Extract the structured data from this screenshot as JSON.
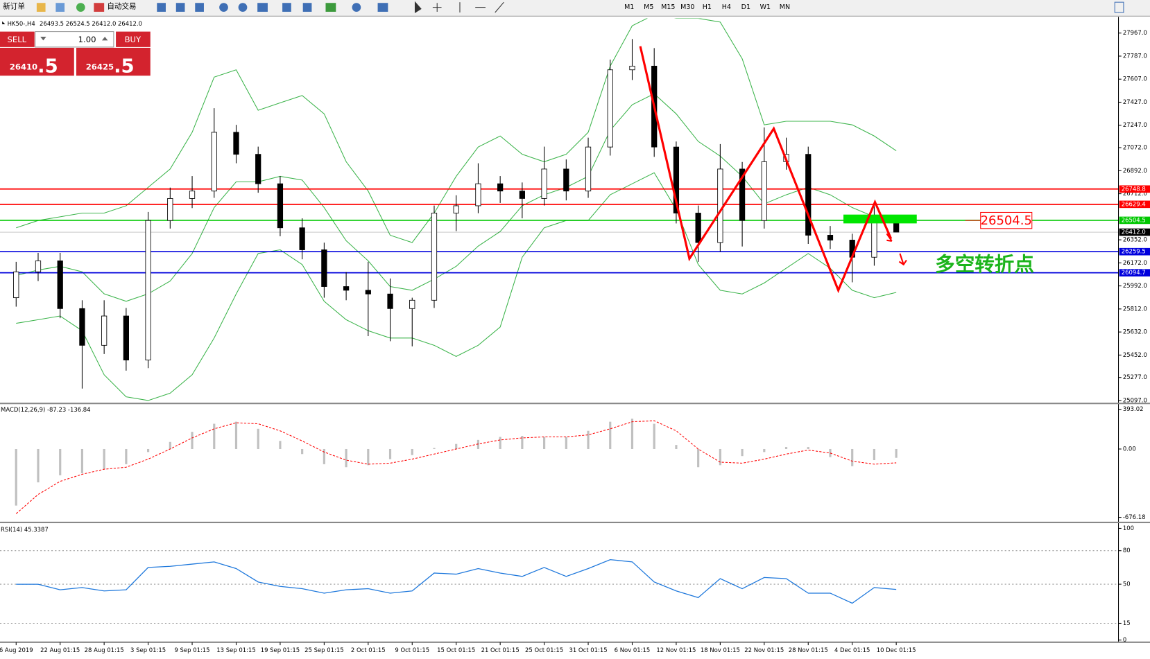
{
  "toolbar": {
    "buttons": [
      "新订单",
      "自动交易"
    ],
    "timeframes": [
      "M1",
      "M5",
      "M15",
      "M30",
      "H1",
      "H4",
      "D1",
      "W1",
      "MN"
    ]
  },
  "trade_panel": {
    "sell": "SELL",
    "buy": "BUY",
    "lots": "1.00",
    "sell_price": "26410",
    "sell_frac": ".5",
    "buy_price": "26425",
    "buy_frac": ".5"
  },
  "chart_data": [
    {
      "type": "candlestick",
      "title": "HK50-,H4",
      "subtitle": "26493.5 26524.5 26412.0 26412.0",
      "categories": [
        "6 Aug 2019",
        null,
        "22 Aug 01:15",
        null,
        "28 Aug 01:15",
        null,
        "3 Sep 01:15",
        null,
        "9 Sep 01:15",
        null,
        "13 Sep 01:15",
        null,
        "19 Sep 01:15",
        null,
        "25 Sep 01:15",
        null,
        "2 Oct 01:15",
        null,
        "9 Oct 01:15",
        null,
        "15 Oct 01:15",
        null,
        "21 Oct 01:15",
        null,
        "25 Oct 01:15",
        null,
        "31 Oct 01:15",
        null,
        "6 Nov 01:15",
        null,
        "12 Nov 01:15",
        null,
        "18 Nov 01:15",
        null,
        "22 Nov 01:15",
        null,
        "28 Nov 01:15",
        null,
        "4 Dec 01:15",
        null,
        "10 Dec 01:15"
      ],
      "open": [
        25900,
        26102,
        26188,
        25815,
        25528,
        25757,
        25413,
        26503,
        26675,
        26733,
        27192,
        27020,
        26790,
        26446,
        26274,
        25987,
        25958,
        25929,
        25815,
        25880,
        26561,
        26618,
        26790,
        26733,
        26675,
        26905,
        26733,
        27077,
        27680,
        27709,
        27077,
        26561,
        26331,
        26905,
        26503,
        26962,
        27020,
        26388,
        26350,
        26216,
        26493.5
      ],
      "high": [
        26180,
        26250,
        26250,
        25880,
        25880,
        25820,
        26570,
        26760,
        26850,
        27380,
        27250,
        27080,
        26850,
        26520,
        26330,
        26100,
        26180,
        26050,
        25900,
        26620,
        26700,
        26950,
        26850,
        26800,
        27080,
        26980,
        27150,
        27760,
        27920,
        27850,
        27120,
        26620,
        27100,
        26960,
        27230,
        27150,
        27080,
        26460,
        26400,
        26640,
        26524.5
      ],
      "low": [
        25830,
        26030,
        25740,
        25190,
        25460,
        25330,
        25350,
        26440,
        26600,
        26680,
        26950,
        26720,
        26380,
        26200,
        25900,
        25880,
        25600,
        25560,
        25520,
        25820,
        26420,
        26560,
        26640,
        26520,
        26620,
        26660,
        26680,
        27010,
        27600,
        27000,
        26480,
        26180,
        26260,
        26300,
        26440,
        26900,
        26320,
        26280,
        26020,
        26150,
        26412
      ],
      "close": [
        26102,
        26188,
        25815,
        25528,
        25757,
        25413,
        26503,
        26675,
        26733,
        27192,
        27020,
        26790,
        26446,
        26274,
        25987,
        25958,
        25929,
        25815,
        25880,
        26561,
        26618,
        26790,
        26733,
        26675,
        26905,
        26733,
        27077,
        27680,
        27709,
        27077,
        26561,
        26331,
        26905,
        26503,
        26962,
        27020,
        26388,
        26350,
        26216,
        26503,
        26412
      ],
      "up_color": "#ffffff",
      "down_color": "#000000",
      "overlays": [
        {
          "color": "#3cb44b",
          "values": [
            26446,
            26503,
            26532,
            26561,
            26561,
            26618,
            26762,
            26905,
            27192,
            27623,
            27680,
            27364,
            27422,
            27479,
            27336,
            26962,
            26733,
            26388,
            26331,
            26561,
            26848,
            27077,
            27163,
            27020,
            26962,
            27020,
            27192,
            27709,
            28024,
            28110,
            28082,
            28082,
            28053,
            27766,
            27250,
            27278,
            27278,
            27278,
            27250,
            27163,
            27048
          ]
        },
        {
          "color": "#3cb44b",
          "values": [
            26073,
            26116,
            26145,
            26102,
            25930,
            25872,
            25930,
            26030,
            26245,
            26604,
            26805,
            26805,
            26848,
            26819,
            26604,
            26345,
            26188,
            25987,
            25958,
            26045,
            26145,
            26303,
            26417,
            26618,
            26704,
            26762,
            26848,
            27207,
            27407,
            27493,
            27336,
            27121,
            27006,
            26848,
            26633,
            26704,
            26762,
            26704,
            26604,
            26532,
            26495
          ]
        },
        {
          "color": "#3cb44b",
          "values": [
            25700,
            25728,
            25757,
            25642,
            25298,
            25126,
            25097,
            25154,
            25298,
            25585,
            25929,
            26245,
            26274,
            26159,
            25872,
            25728,
            25642,
            25585,
            25585,
            25528,
            25441,
            25528,
            25671,
            26216,
            26446,
            26503,
            26503,
            26704,
            26790,
            26876,
            26589,
            26159,
            25958,
            25929,
            26015,
            26130,
            26245,
            26130,
            25958,
            25900,
            25941
          ]
        }
      ],
      "levels": [
        {
          "value": 26748.8,
          "color": "#ff0000"
        },
        {
          "value": 26629.4,
          "color": "#ff0000"
        },
        {
          "value": 26504.5,
          "color": "#00c800"
        },
        {
          "value": 26412,
          "label": "26412.0",
          "color": "#000000"
        },
        {
          "value": 26259.5,
          "color": "#0000dd"
        },
        {
          "value": 26094.7,
          "color": "#0000dd"
        }
      ],
      "annotations": [
        "26504.5",
        "多空转折点"
      ],
      "ylim": [
        25097,
        27967
      ],
      "yticks": [
        {
          "value": 27967,
          "label": "27967.0"
        },
        {
          "value": 27787,
          "label": "27787.0"
        },
        {
          "value": 27607,
          "label": "27607.0"
        },
        {
          "value": 27427,
          "label": "27427.0"
        },
        {
          "value": 27247,
          "label": "27247.0"
        },
        {
          "value": 27072,
          "label": "27072.0"
        },
        {
          "value": 26892,
          "label": "26892.0"
        },
        {
          "value": 26712,
          "label": "26712.0"
        },
        {
          "value": 26352,
          "label": "26352.0"
        },
        {
          "value": 26172,
          "label": "26172.0"
        },
        {
          "value": 25992,
          "label": "25992.0"
        },
        {
          "value": 25812,
          "label": "25812.0"
        },
        {
          "value": 25632,
          "label": "25632.0"
        },
        {
          "value": 25452,
          "label": "25452.0"
        },
        {
          "value": 25277,
          "label": "25277.0"
        },
        {
          "value": 25097,
          "label": "25097.0"
        }
      ],
      "grid": false
    },
    {
      "type": "macd",
      "title": "MACD(12,26,9) -87.23 -136.84",
      "histogram": {
        "color": "#c0c0c0",
        "values": [
          -560,
          -330,
          -260,
          -240,
          -200,
          -150,
          -30,
          70,
          170,
          250,
          270,
          200,
          80,
          -50,
          -150,
          -180,
          -160,
          -100,
          -60,
          10,
          50,
          90,
          120,
          130,
          120,
          120,
          180,
          270,
          300,
          250,
          40,
          -180,
          -160,
          -70,
          -30,
          20,
          20,
          -80,
          -170,
          -110,
          -87.23
        ]
      },
      "signal": {
        "color": "#ff0000",
        "values": [
          -640,
          -450,
          -320,
          -250,
          -200,
          -180,
          -100,
          0,
          110,
          200,
          260,
          250,
          180,
          80,
          -30,
          -110,
          -150,
          -140,
          -100,
          -50,
          0,
          50,
          90,
          110,
          120,
          120,
          140,
          200,
          270,
          280,
          180,
          0,
          -130,
          -140,
          -100,
          -50,
          -10,
          -40,
          -120,
          -150,
          -136.84
        ]
      },
      "ylim": [
        -676.18,
        393.02
      ],
      "yticks": [
        393.02,
        {
          "value": 0,
          "label": "0.00"
        },
        -676.18
      ],
      "grid": false
    },
    {
      "type": "line",
      "title": "RSI(14) 45.3387",
      "color": "#1e78dc",
      "values": [
        50,
        50,
        45,
        47,
        44,
        45,
        65,
        66,
        68,
        70,
        64,
        52,
        48,
        46,
        42,
        45,
        46,
        42,
        44,
        60,
        59,
        64,
        60,
        57,
        65,
        57,
        64,
        72,
        70,
        52,
        44,
        38,
        55,
        46,
        56,
        55,
        42,
        42,
        33,
        47,
        45.3387
      ],
      "ylim": [
        0,
        100
      ],
      "yticks": [
        100,
        80,
        50,
        15,
        0
      ],
      "grid": true
    }
  ]
}
